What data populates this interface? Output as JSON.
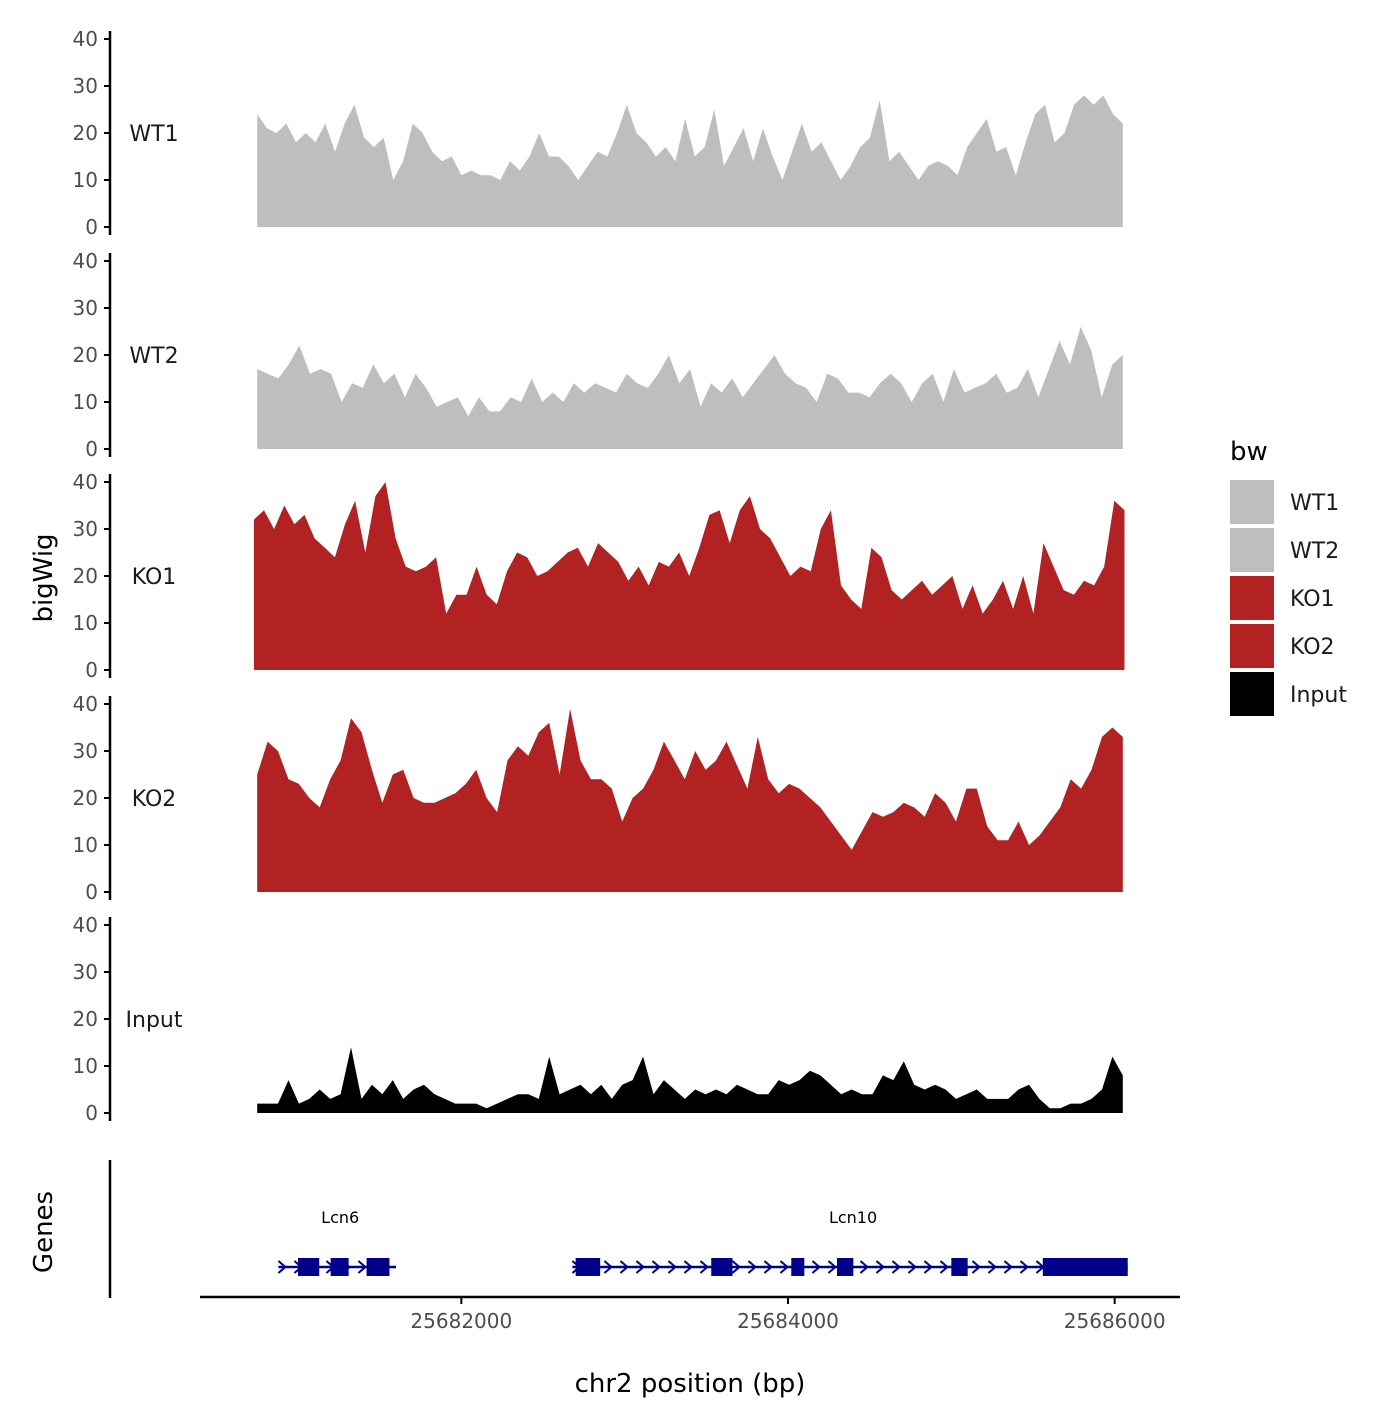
{
  "chart_data": [
    {
      "type": "area",
      "ylabel": "bigWig",
      "xlabel": "chr2 position (bp)",
      "xlim": [
        25680400,
        25686400
      ],
      "ylim": [
        0,
        40
      ],
      "y_ticks": [
        "0",
        "10",
        "20",
        "30",
        "40"
      ],
      "x_ticks": [
        {
          "value": 25682000,
          "label": "25682000"
        },
        {
          "value": 25684000,
          "label": "25684000"
        },
        {
          "value": 25686000,
          "label": "25686000"
        }
      ],
      "grid": false,
      "legend": {
        "title": "bw",
        "placement": "right",
        "entries": [
          {
            "label": "WT1",
            "color": "#bebebe"
          },
          {
            "label": "WT2",
            "color": "#bebebe"
          },
          {
            "label": "KO1",
            "color": "#b22222"
          },
          {
            "label": "KO2",
            "color": "#b22222"
          },
          {
            "label": "Input",
            "color": "#000000"
          }
        ]
      },
      "series": [
        {
          "name": "WT1",
          "color": "#bebebe",
          "x_start": 25680750,
          "x_end": 25686050,
          "values": [
            24,
            21,
            20,
            22,
            18,
            20,
            18,
            22,
            16,
            22,
            26,
            19,
            17,
            19,
            10,
            14,
            22,
            20,
            16,
            14,
            15,
            11,
            12,
            11,
            11,
            10,
            14,
            12,
            15,
            20,
            15,
            15,
            13,
            10,
            13,
            16,
            15,
            20,
            26,
            20,
            18,
            15,
            17,
            14,
            23,
            15,
            17,
            25,
            13,
            17,
            21,
            14,
            21,
            15,
            10,
            16,
            22,
            16,
            18,
            14,
            10,
            13,
            17,
            19,
            27,
            14,
            16,
            13,
            10,
            13,
            14,
            13,
            11,
            17,
            20,
            23,
            16,
            17,
            11,
            18,
            24,
            26,
            18,
            20,
            26,
            28,
            26,
            28,
            24,
            22
          ]
        },
        {
          "name": "WT2",
          "color": "#bebebe",
          "x_start": 25680750,
          "x_end": 25686050,
          "values": [
            17,
            16,
            15,
            18,
            22,
            16,
            17,
            16,
            10,
            14,
            13,
            18,
            14,
            16,
            11,
            16,
            13,
            9,
            10,
            11,
            7,
            11,
            8,
            8,
            11,
            10,
            15,
            10,
            12,
            10,
            14,
            12,
            14,
            13,
            12,
            16,
            14,
            13,
            16,
            20,
            14,
            17,
            9,
            14,
            12,
            15,
            11,
            14,
            17,
            20,
            16,
            14,
            13,
            10,
            16,
            15,
            12,
            12,
            11,
            14,
            16,
            14,
            10,
            14,
            16,
            10,
            17,
            12,
            13,
            14,
            16,
            12,
            13,
            17,
            11,
            17,
            23,
            18,
            26,
            21,
            11,
            18,
            20
          ]
        },
        {
          "name": "KO1",
          "color": "#b22222",
          "x_start": 25680730,
          "x_end": 25686060,
          "values": [
            32,
            34,
            30,
            35,
            31,
            33,
            28,
            26,
            24,
            31,
            36,
            25,
            37,
            40,
            28,
            22,
            21,
            22,
            24,
            12,
            16,
            16,
            22,
            16,
            14,
            21,
            25,
            24,
            20,
            21,
            23,
            25,
            26,
            22,
            27,
            25,
            23,
            19,
            22,
            18,
            23,
            22,
            25,
            20,
            26,
            33,
            34,
            27,
            34,
            37,
            30,
            28,
            24,
            20,
            22,
            21,
            30,
            34,
            18,
            15,
            13,
            26,
            24,
            17,
            15,
            17,
            19,
            16,
            18,
            20,
            13,
            18,
            12,
            15,
            19,
            13,
            20,
            12,
            27,
            22,
            17,
            16,
            19,
            18,
            22,
            36,
            34
          ]
        },
        {
          "name": "KO2",
          "color": "#b22222",
          "x_start": 25680750,
          "x_end": 25686050,
          "values": [
            25,
            32,
            30,
            24,
            23,
            20,
            18,
            24,
            28,
            37,
            34,
            26,
            19,
            25,
            26,
            20,
            19,
            19,
            20,
            21,
            23,
            26,
            20,
            17,
            28,
            31,
            29,
            34,
            36,
            25,
            39,
            28,
            24,
            24,
            22,
            15,
            20,
            22,
            26,
            32,
            28,
            24,
            30,
            26,
            28,
            32,
            27,
            22,
            33,
            24,
            21,
            23,
            22,
            20,
            18,
            15,
            12,
            9,
            13,
            17,
            16,
            17,
            19,
            18,
            16,
            21,
            19,
            15,
            22,
            22,
            14,
            11,
            11,
            15,
            10,
            12,
            15,
            18,
            24,
            22,
            26,
            33,
            35,
            33
          ]
        },
        {
          "name": "Input",
          "color": "#000000",
          "x_start": 25680750,
          "x_end": 25686050,
          "values": [
            2,
            2,
            2,
            7,
            2,
            3,
            5,
            3,
            4,
            14,
            3,
            6,
            4,
            7,
            3,
            5,
            6,
            4,
            3,
            2,
            2,
            2,
            1,
            2,
            3,
            4,
            4,
            3,
            12,
            4,
            5,
            6,
            4,
            6,
            3,
            6,
            7,
            12,
            4,
            7,
            5,
            3,
            5,
            4,
            5,
            4,
            6,
            5,
            4,
            4,
            7,
            6,
            7,
            9,
            8,
            6,
            4,
            5,
            4,
            4,
            8,
            7,
            11,
            6,
            5,
            6,
            5,
            3,
            4,
            5,
            3,
            3,
            3,
            5,
            6,
            3,
            1,
            1,
            2,
            2,
            3,
            5,
            12,
            8
          ]
        }
      ],
      "genes_track": {
        "label": "Genes",
        "color": "#00008b",
        "genes": [
          {
            "name": "Lcn6",
            "strand": "+",
            "start": 25680880,
            "end": 25681600,
            "exons": [
              [
                25681000,
                25681130
              ],
              [
                25681200,
                25681310
              ],
              [
                25681420,
                25681560
              ]
            ]
          },
          {
            "name": "Lcn10",
            "strand": "+",
            "start": 25682680,
            "end": 25686080,
            "exons": [
              [
                25682700,
                25682850
              ],
              [
                25683530,
                25683660
              ],
              [
                25684020,
                25684100
              ],
              [
                25684300,
                25684400
              ],
              [
                25685000,
                25685100
              ],
              [
                25685560,
                25686080
              ]
            ]
          }
        ]
      }
    }
  ]
}
